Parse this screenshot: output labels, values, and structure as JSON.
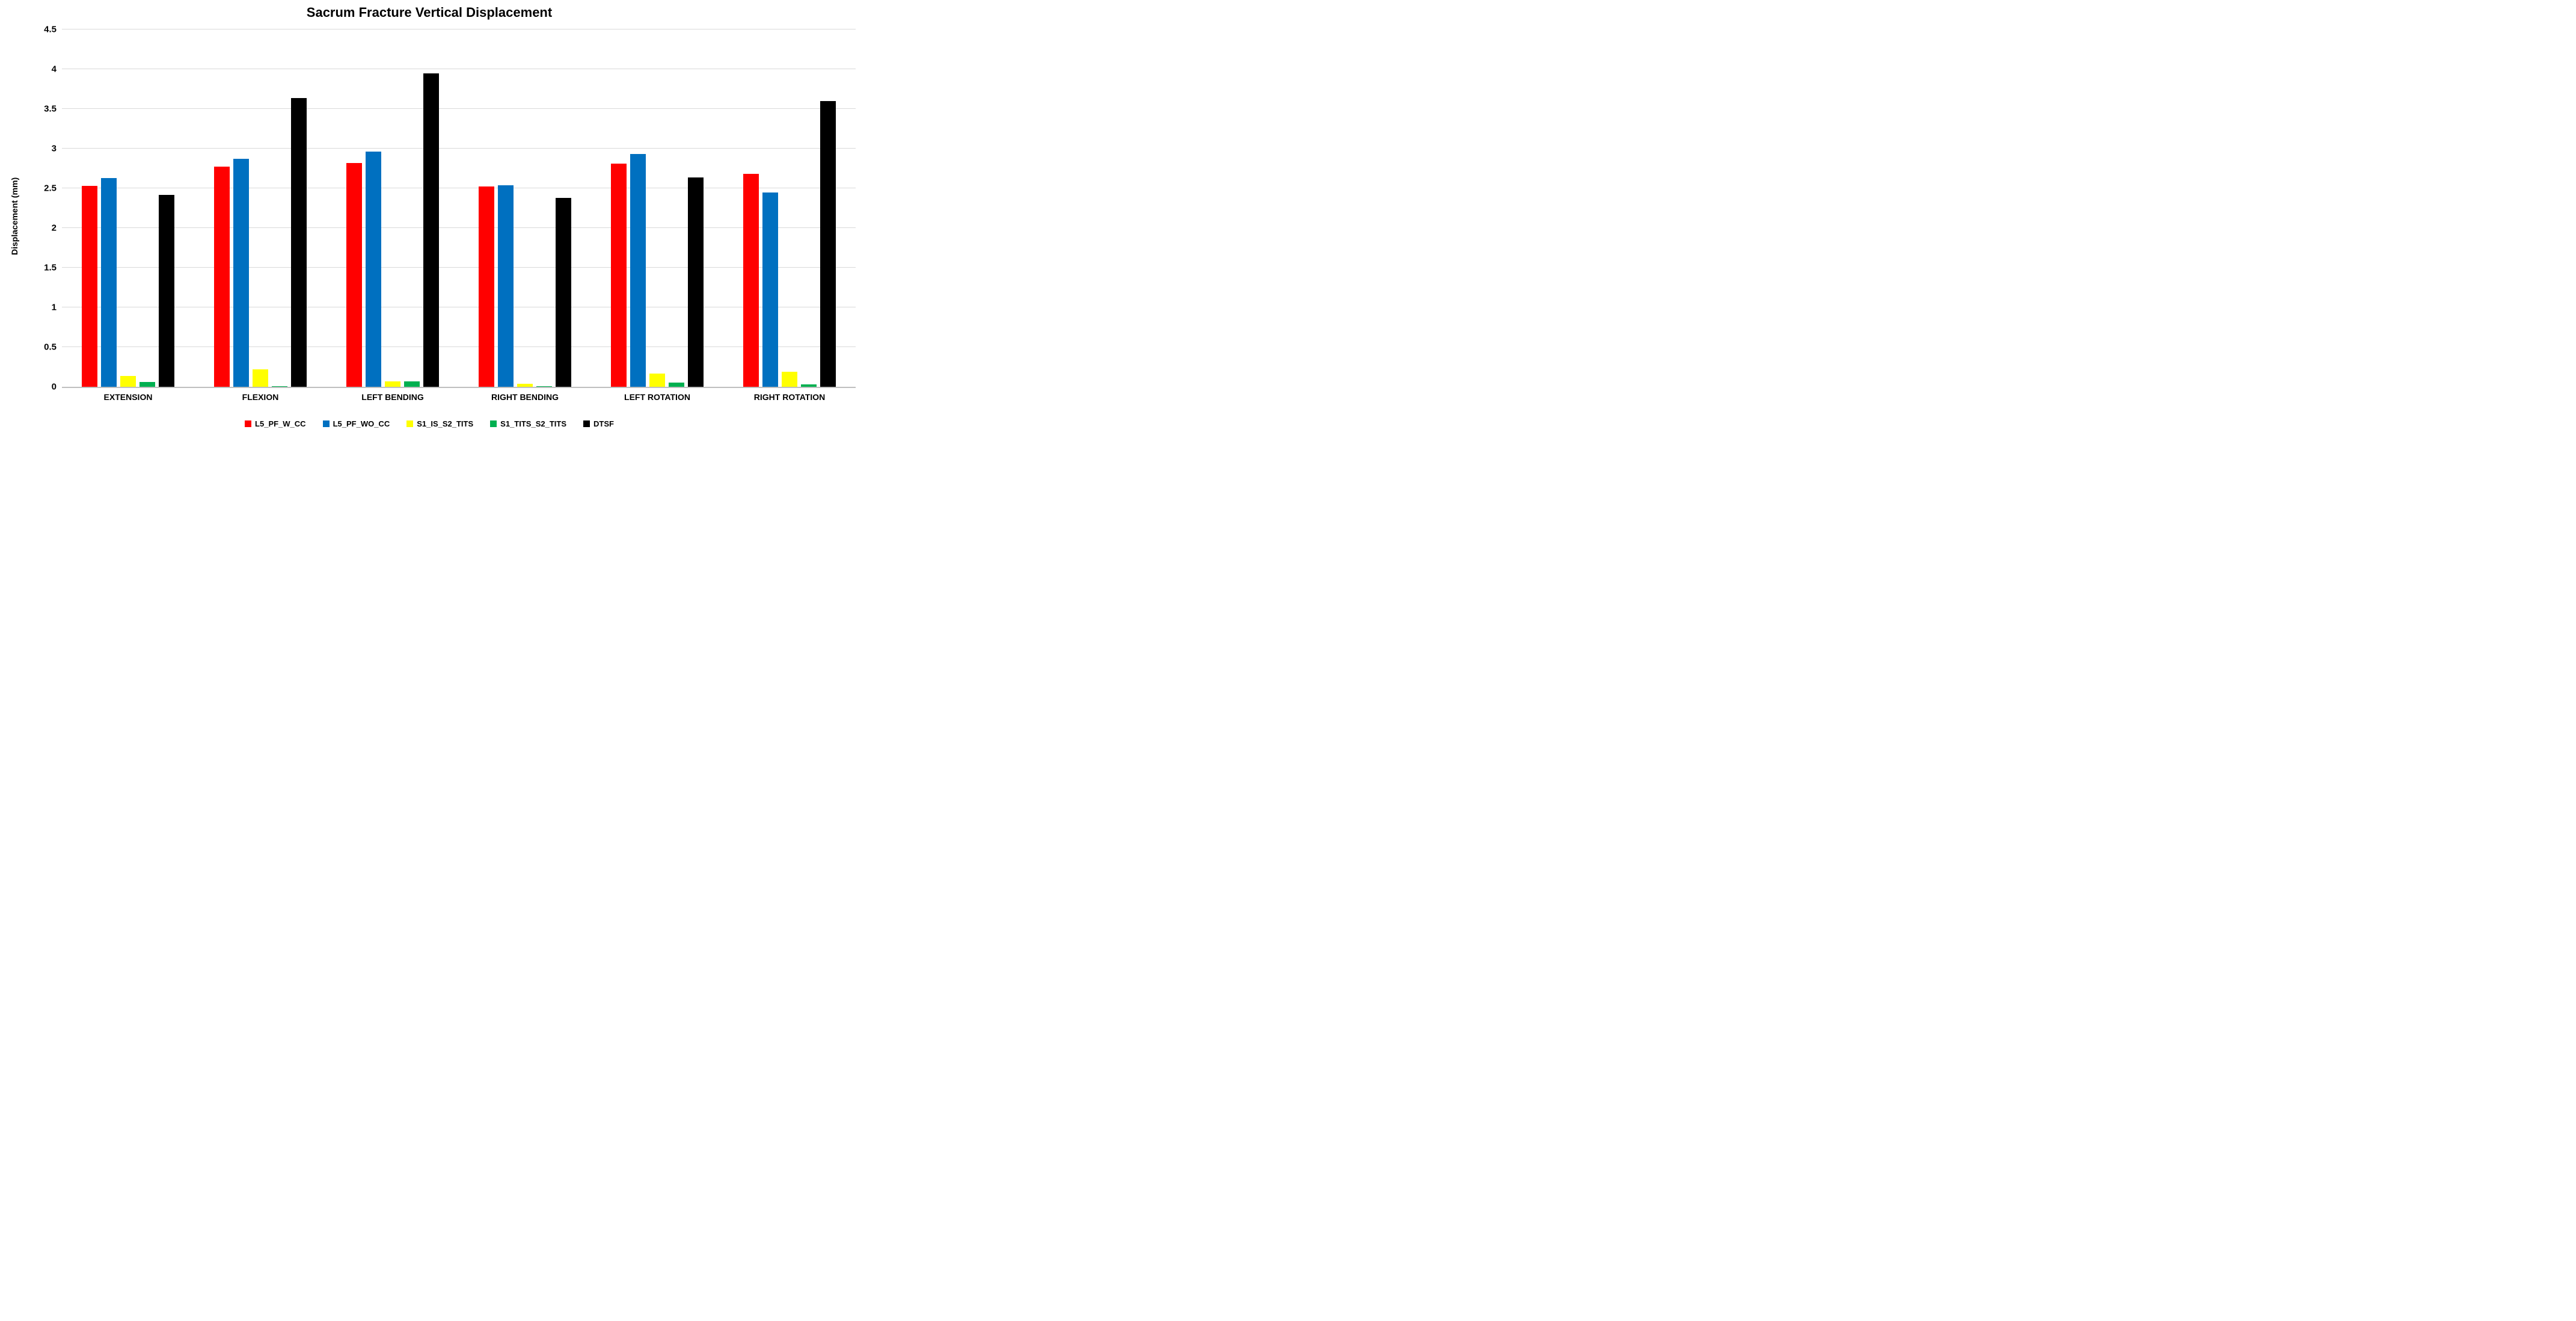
{
  "chart_data": {
    "type": "bar",
    "title": "Sacrum Fracture Vertical Displacement",
    "xlabel": "",
    "ylabel": "Displacement (mm)",
    "ylim": [
      0,
      4.5
    ],
    "ytick_step": 0.5,
    "ytick_labels": [
      "0",
      "0.5",
      "1",
      "1.5",
      "2",
      "2.5",
      "3",
      "3.5",
      "4",
      "4.5"
    ],
    "grid": true,
    "legend_position": "bottom",
    "background_color": "#FFFFFF",
    "grid_color": "#D9D9D9",
    "axis_line_color": "#BFBFBF",
    "text_color": "#000000",
    "categories": [
      "EXTENSION",
      "FLEXION",
      "LEFT BENDING",
      "RIGHT BENDING",
      "LEFT ROTATION",
      "RIGHT ROTATION"
    ],
    "series": [
      {
        "name": "L5_PF_W_CC",
        "color": "#FF0000",
        "values": [
          2.53,
          2.77,
          2.82,
          2.52,
          2.81,
          2.68
        ]
      },
      {
        "name": "L5_PF_WO_CC",
        "color": "#0070C0",
        "values": [
          2.63,
          2.87,
          2.96,
          2.54,
          2.93,
          2.45
        ]
      },
      {
        "name": "S1_IS_S2_TITS",
        "color": "#FFFF00",
        "values": [
          0.14,
          0.22,
          0.07,
          0.04,
          0.17,
          0.19
        ]
      },
      {
        "name": "S1_TITS_S2_TITS",
        "color": "#00B050",
        "values": [
          0.06,
          0.01,
          0.07,
          0.01,
          0.05,
          0.03
        ]
      },
      {
        "name": "DTSF",
        "color": "#000000",
        "values": [
          2.42,
          3.64,
          3.95,
          2.38,
          2.64,
          3.6
        ]
      }
    ]
  }
}
